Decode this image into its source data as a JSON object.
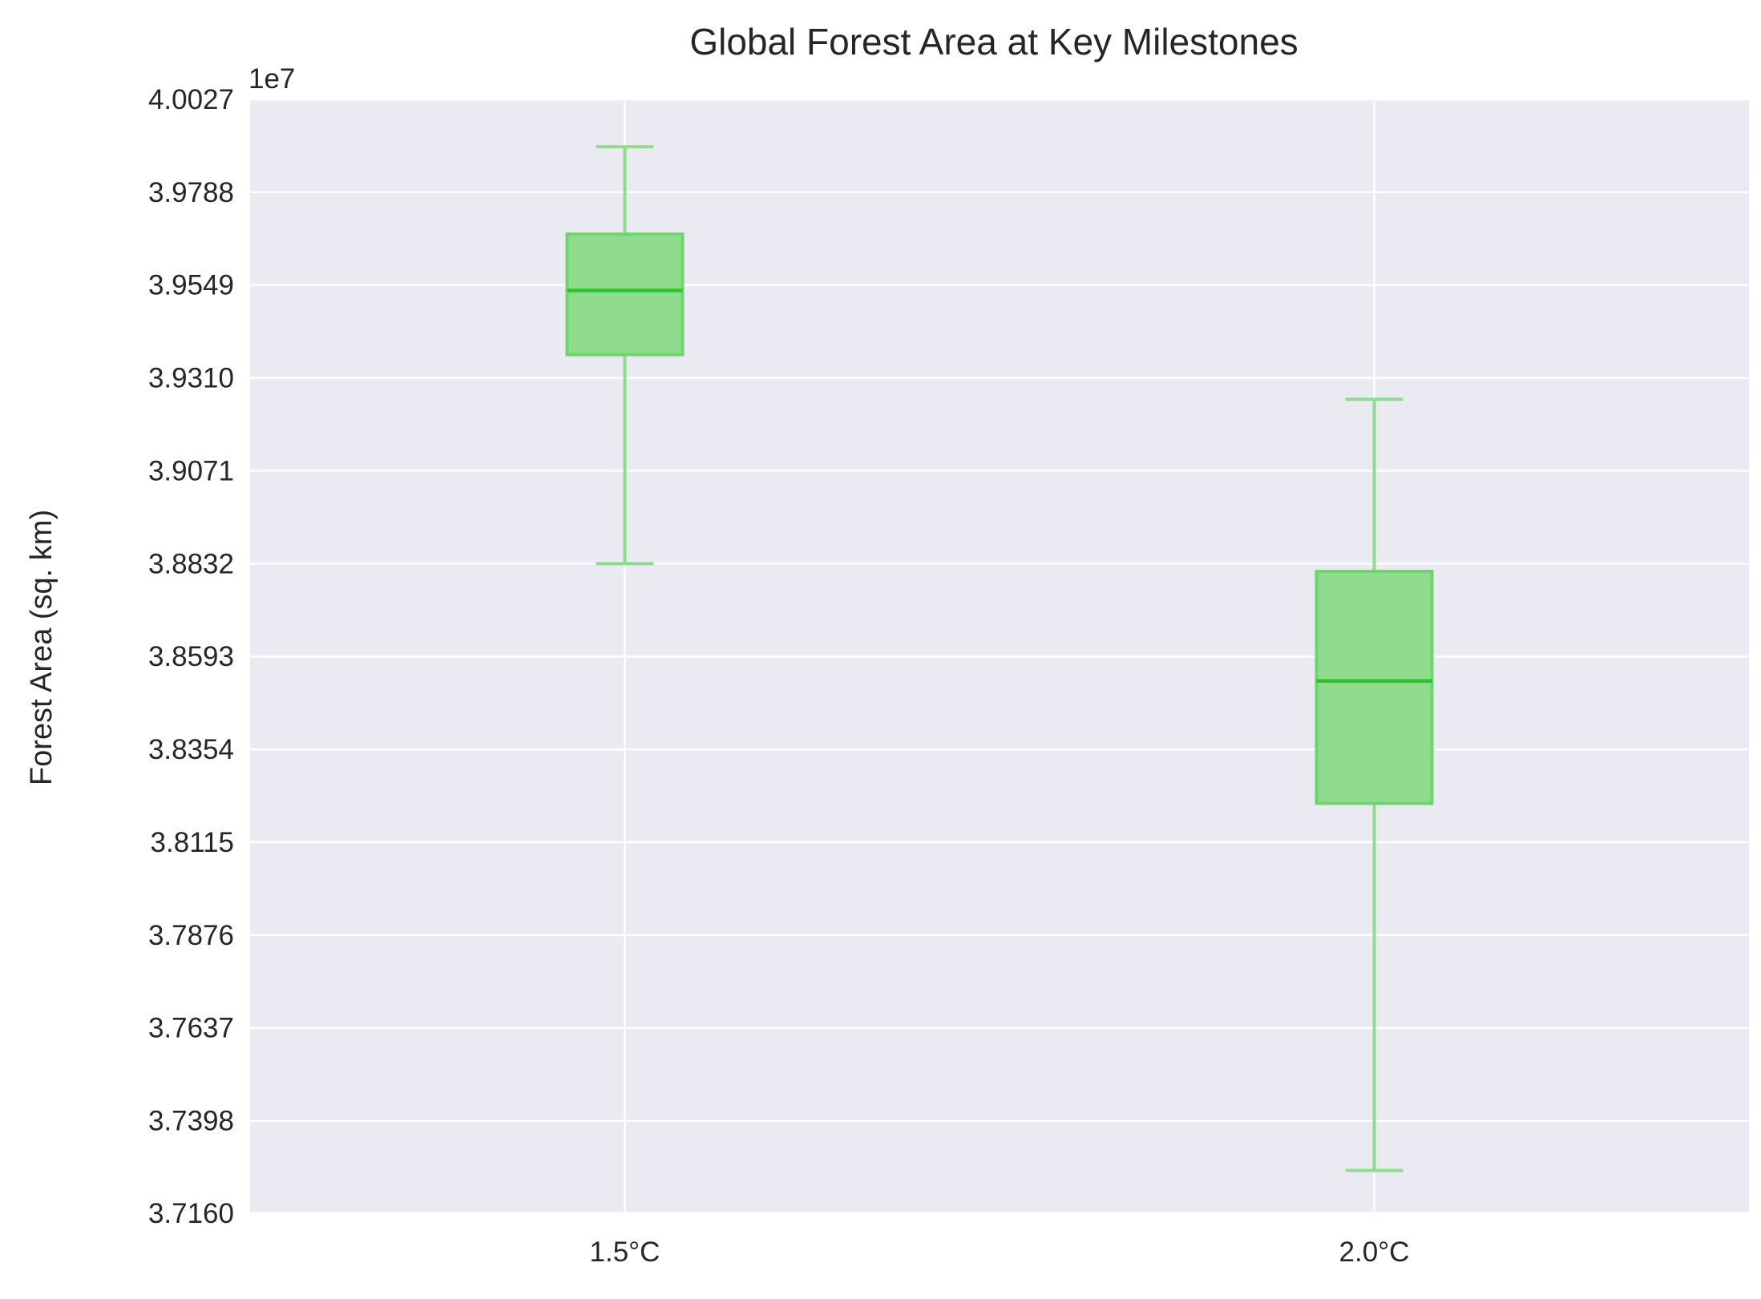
{
  "chart_data": {
    "type": "box",
    "title": "Global Forest Area at Key Milestones",
    "xlabel": "",
    "ylabel": "Forest Area (sq. km)",
    "y_offset_label": "1e7",
    "categories": [
      "1.5°C",
      "2.0°C"
    ],
    "boxes": [
      {
        "category": "1.5°C",
        "whisker_low": 38832000,
        "q1": 39370000,
        "median": 39535000,
        "q3": 39680000,
        "whisker_high": 39905000
      },
      {
        "category": "2.0°C",
        "whisker_low": 37270000,
        "q1": 38215000,
        "median": 38530000,
        "q3": 38812000,
        "whisker_high": 39255000
      }
    ],
    "ylim": [
      37160000,
      40027000
    ],
    "yticks": [
      37160000,
      37398000,
      37637000,
      37876000,
      38115000,
      38354000,
      38593000,
      38832000,
      39071000,
      39310000,
      39549000,
      39788000,
      40027000
    ],
    "ytick_labels": [
      "3.7160",
      "3.7398",
      "3.7637",
      "3.7876",
      "3.8115",
      "3.8354",
      "3.8593",
      "3.8832",
      "3.9071",
      "3.9310",
      "3.9549",
      "3.9788",
      "4.0027"
    ],
    "grid": true,
    "legend": "none",
    "colors": {
      "plot_background": "#eaeaf2",
      "grid": "#ffffff",
      "box_fill": "#8fdc8f",
      "box_edge": "#6ed46e",
      "median": "#2ec12e",
      "whisker": "#8fdc8f"
    }
  }
}
